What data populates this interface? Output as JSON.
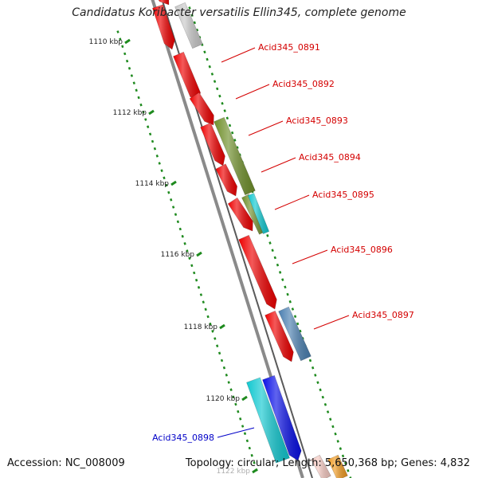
{
  "title": "Candidatus Koribacter versatilis Ellin345, complete genome",
  "footer": {
    "accession": "Accession: NC_008009",
    "stats": "Topology: circular; Length: 5,650,368 bp; Genes: 4,832"
  },
  "colors": {
    "backbone": "#8a8a8a",
    "tick": "#1e8a1e",
    "forward_label": "#d40000",
    "reverse_label": "#0000c8"
  },
  "kbp_ticks": [
    {
      "label": "1110 kbp"
    },
    {
      "label": "1112 kbp"
    },
    {
      "label": "1114 kbp"
    },
    {
      "label": "1116 kbp"
    },
    {
      "label": "1118 kbp"
    },
    {
      "label": "1120 kbp"
    },
    {
      "label": "1122 kbp"
    }
  ],
  "gene_labels": [
    {
      "text": "Acid345_0891",
      "color": "#d40000"
    },
    {
      "text": "Acid345_0892",
      "color": "#d40000"
    },
    {
      "text": "Acid345_0893",
      "color": "#d40000"
    },
    {
      "text": "Acid345_0894",
      "color": "#d40000"
    },
    {
      "text": "Acid345_0895",
      "color": "#d40000"
    },
    {
      "text": "Acid345_0896",
      "color": "#d40000"
    },
    {
      "text": "Acid345_0897",
      "color": "#d40000"
    },
    {
      "text": "Acid345_0898",
      "color": "#0000c8"
    }
  ],
  "features": [
    {
      "name": "red-gene",
      "color": "#ee0000",
      "arrow": true
    },
    {
      "name": "red-gene",
      "color": "#ee0000",
      "arrow": true
    },
    {
      "name": "red-gene",
      "color": "#ee0000",
      "arrow": true
    },
    {
      "name": "red-gene",
      "color": "#ee0000",
      "arrow": true
    },
    {
      "name": "red-gene",
      "color": "#ee0000",
      "arrow": true
    },
    {
      "name": "red-gene",
      "color": "#ee0000",
      "arrow": true
    },
    {
      "name": "red-gene",
      "color": "#ee0000",
      "arrow": true
    },
    {
      "name": "red-gene",
      "color": "#ee0000",
      "arrow": true
    },
    {
      "name": "red-gene",
      "color": "#ee0000",
      "arrow": true
    },
    {
      "name": "olive-feature",
      "color": "#6f8f2a",
      "arrow": false
    },
    {
      "name": "olive-feature",
      "color": "#6f8f2a",
      "arrow": false
    },
    {
      "name": "cyan-feature",
      "color": "#10c8d0",
      "arrow": false
    },
    {
      "name": "steelblue-feature",
      "color": "#4a7fb0",
      "arrow": false
    },
    {
      "name": "cyan-feature",
      "color": "#10c8d0",
      "arrow": false
    },
    {
      "name": "blue-gene",
      "color": "#0a10e6",
      "arrow": true
    },
    {
      "name": "gray-feature",
      "color": "#c8c8c8",
      "arrow": false
    },
    {
      "name": "orange-feature",
      "color": "#f09a20",
      "arrow": false
    },
    {
      "name": "pink-feature",
      "color": "#f4c8c0",
      "arrow": false
    }
  ]
}
